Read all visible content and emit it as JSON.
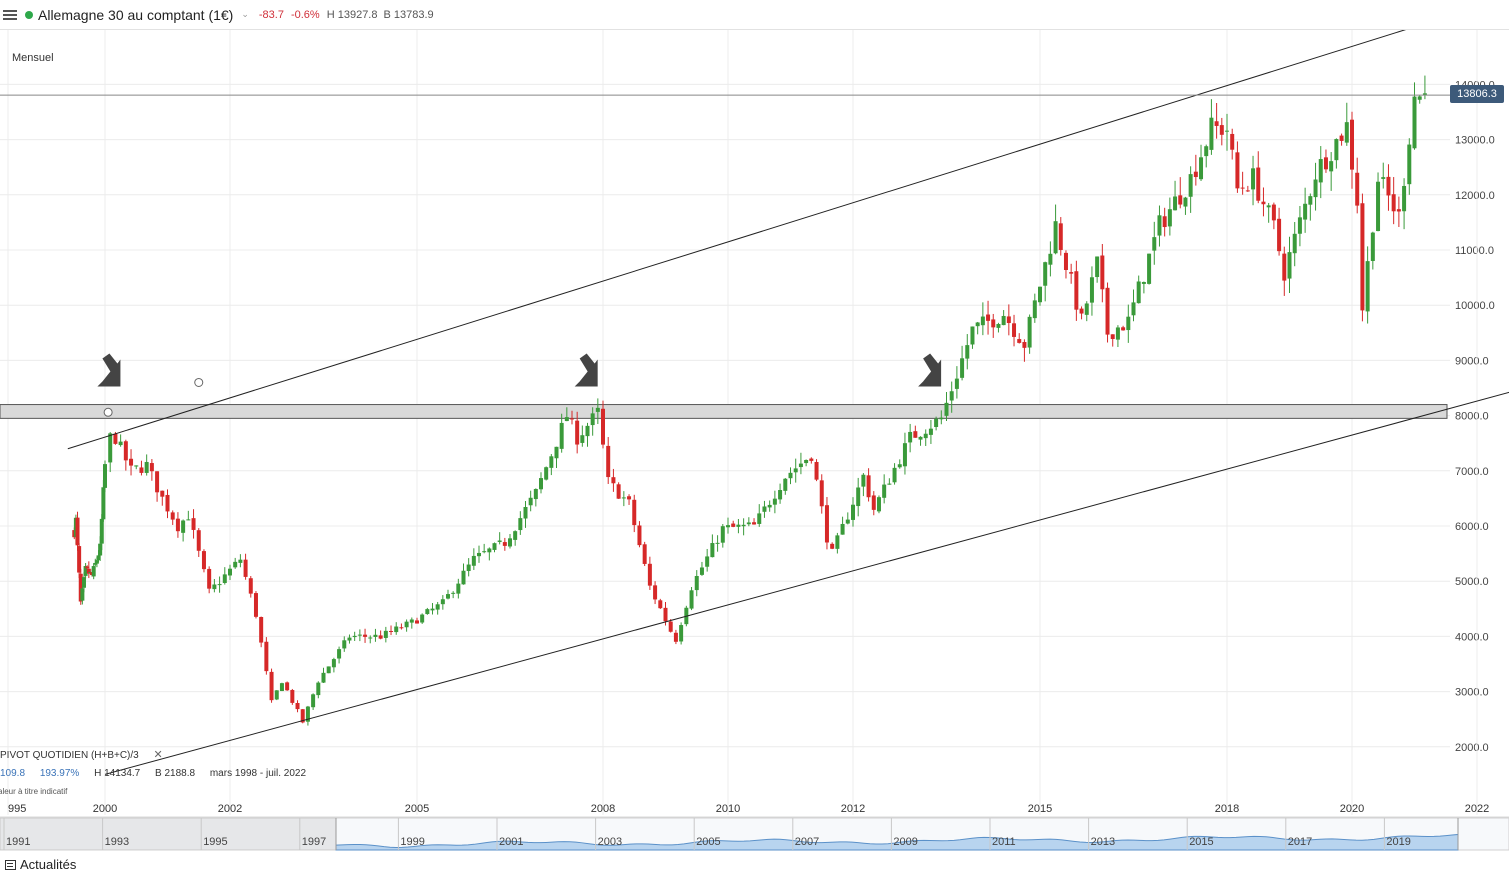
{
  "header": {
    "instrument": "Allemagne 30 au comptant (1€)",
    "caret": "⌄",
    "change": "-83.7",
    "change_pct": "-0.6%",
    "high": "H 13927.8",
    "low": "B 13783.9",
    "status_color": "#2ea84a"
  },
  "timeframe": "Mensuel",
  "current_price": "13806.3",
  "pivot": {
    "label": "PIVOT  QUOTIDIEN  (H+B+C)/3",
    "close": "✕",
    "value": "109.8",
    "pct": "193.97%",
    "high": "H 14134.7",
    "low": "B 2188.8",
    "range": "mars 1998 - juil. 2022",
    "disclaimer": "aleur à titre indicatif"
  },
  "news_label": "Actualités",
  "chart_data": {
    "type": "candlestick",
    "up_color": "#3a9a3a",
    "down_color": "#d62828",
    "ylim": [
      1600,
      15000
    ],
    "y_ticks": [
      "14000.0",
      "13000.0",
      "12000.0",
      "11000.0",
      "10000.0",
      "9000.0",
      "8000.0",
      "7000.0",
      "6000.0",
      "5000.0",
      "4000.0",
      "3000.0",
      "2000.0"
    ],
    "x_ticks": [
      "995",
      "2000",
      "2002",
      "2005",
      "2008",
      "2010",
      "2012",
      "2015",
      "2018",
      "2020",
      "2022"
    ],
    "navigator_ticks": [
      "1991",
      "1993",
      "1995",
      "1997",
      "1999",
      "2001",
      "2003",
      "2005",
      "2007",
      "2009",
      "2011",
      "2013",
      "2015",
      "2017",
      "2019"
    ],
    "series": [
      {
        "x": "1998-06",
        "y": 5900
      },
      {
        "x": "1998-07",
        "y": 6100
      },
      {
        "x": "1998-10",
        "y": 4600
      },
      {
        "x": "1999-01",
        "y": 5200
      },
      {
        "x": "1999-05",
        "y": 5100
      },
      {
        "x": "1999-10",
        "y": 5600
      },
      {
        "x": "2000-02",
        "y": 7600
      },
      {
        "x": "2000-03",
        "y": 7600
      },
      {
        "x": "2000-06",
        "y": 7000
      },
      {
        "x": "2000-09",
        "y": 7100
      },
      {
        "x": "2000-12",
        "y": 6500
      },
      {
        "x": "2001-03",
        "y": 6000
      },
      {
        "x": "2001-05",
        "y": 6200
      },
      {
        "x": "2001-09",
        "y": 4800
      },
      {
        "x": "2001-12",
        "y": 5100
      },
      {
        "x": "2002-03",
        "y": 5400
      },
      {
        "x": "2002-06",
        "y": 4400
      },
      {
        "x": "2002-09",
        "y": 2800
      },
      {
        "x": "2002-11",
        "y": 3200
      },
      {
        "x": "2003-03",
        "y": 2450
      },
      {
        "x": "2003-06",
        "y": 3200
      },
      {
        "x": "2003-12",
        "y": 4000
      },
      {
        "x": "2004-06",
        "y": 4000
      },
      {
        "x": "2004-12",
        "y": 4250
      },
      {
        "x": "2005-06",
        "y": 4600
      },
      {
        "x": "2005-12",
        "y": 5400
      },
      {
        "x": "2006-06",
        "y": 5700
      },
      {
        "x": "2006-12",
        "y": 6600
      },
      {
        "x": "2007-06",
        "y": 8000
      },
      {
        "x": "2007-08",
        "y": 7600
      },
      {
        "x": "2007-12",
        "y": 8050
      },
      {
        "x": "2008-02",
        "y": 6800
      },
      {
        "x": "2008-06",
        "y": 6400
      },
      {
        "x": "2008-10",
        "y": 4900
      },
      {
        "x": "2009-02",
        "y": 4100
      },
      {
        "x": "2009-03",
        "y": 3950
      },
      {
        "x": "2009-06",
        "y": 4900
      },
      {
        "x": "2009-12",
        "y": 5950
      },
      {
        "x": "2010-06",
        "y": 6000
      },
      {
        "x": "2010-12",
        "y": 6900
      },
      {
        "x": "2011-05",
        "y": 7300
      },
      {
        "x": "2011-08",
        "y": 5800
      },
      {
        "x": "2011-09",
        "y": 5500
      },
      {
        "x": "2012-03",
        "y": 6900
      },
      {
        "x": "2012-05",
        "y": 6300
      },
      {
        "x": "2012-12",
        "y": 7600
      },
      {
        "x": "2013-06",
        "y": 7950
      },
      {
        "x": "2013-12",
        "y": 9550
      },
      {
        "x": "2014-06",
        "y": 9850
      },
      {
        "x": "2014-10",
        "y": 9300
      },
      {
        "x": "2015-04",
        "y": 11450
      },
      {
        "x": "2015-09",
        "y": 9700
      },
      {
        "x": "2015-12",
        "y": 10750
      },
      {
        "x": "2016-02",
        "y": 9500
      },
      {
        "x": "2016-06",
        "y": 9700
      },
      {
        "x": "2016-12",
        "y": 11450
      },
      {
        "x": "2017-06",
        "y": 12300
      },
      {
        "x": "2017-10",
        "y": 13200
      },
      {
        "x": "2018-01",
        "y": 13200
      },
      {
        "x": "2018-03",
        "y": 12100
      },
      {
        "x": "2018-06",
        "y": 12300
      },
      {
        "x": "2018-10",
        "y": 11400
      },
      {
        "x": "2018-12",
        "y": 10600
      },
      {
        "x": "2019-06",
        "y": 12400
      },
      {
        "x": "2019-12",
        "y": 13250
      },
      {
        "x": "2020-02",
        "y": 11900
      },
      {
        "x": "2020-03",
        "y": 9950
      },
      {
        "x": "2020-06",
        "y": 12300
      },
      {
        "x": "2020-10",
        "y": 11600
      },
      {
        "x": "2021-01",
        "y": 13800
      },
      {
        "x": "2021-03",
        "y": 13806
      }
    ],
    "annotations": {
      "resistance_zone": [
        7950,
        8200
      ],
      "arrows_at": [
        "2000-03",
        "2007-11",
        "2013-05"
      ],
      "upper_trendline": [
        [
          "1998-02",
          7400
        ],
        [
          "2023-06",
          15900
        ]
      ],
      "lower_trendline": [
        [
          "2000-01",
          1500
        ],
        [
          "2023-06",
          8700
        ]
      ]
    }
  }
}
